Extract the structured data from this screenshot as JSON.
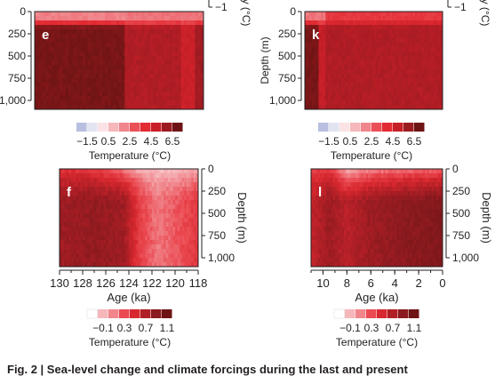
{
  "caption": "Fig. 2 | Sea-level change and climate forcings during the last and present",
  "legend_seq": {
    "colors": [
      "#b9bfe0",
      "#e2e4f2",
      "#fbe3e5",
      "#f6b7bb",
      "#f0868c",
      "#eb5058",
      "#e32b33",
      "#c71f28",
      "#9b1b21",
      "#6e1414"
    ],
    "labels": [
      "−1.5",
      "0.5",
      "2.5",
      "4.5",
      "6.5"
    ],
    "title": "Temperature (°C)"
  },
  "legend_div": {
    "colors": [
      "#ffffff",
      "#f6b7bb",
      "#f0868c",
      "#eb4a52",
      "#d8282f",
      "#b01f26",
      "#8a1a1f",
      "#6e1414"
    ],
    "labels": [
      "−0.1",
      "0.3",
      "0.7",
      "1.1"
    ],
    "title": "Temperature (°C)"
  },
  "chart_data": [
    {
      "type": "heatmap",
      "panel_label": "e",
      "ylabel": "Depth (m)",
      "y_ticks": [
        "0",
        "250",
        "500",
        "750",
        "1,000"
      ],
      "ylim": [
        0,
        1100
      ],
      "colorbar_label": "Temperature (°C)",
      "colorbar_range": [
        -1.5,
        7.5
      ],
      "side_label": "y (°C)",
      "side_tick": "−1",
      "segments": [
        {
          "x_start_frac": 0.0,
          "x_end_frac": 0.53,
          "surface_temp": 1.2,
          "deep_temp": 7.2
        },
        {
          "x_start_frac": 0.53,
          "x_end_frac": 0.87,
          "surface_temp": 1.5,
          "deep_temp": 5.6
        },
        {
          "x_start_frac": 0.87,
          "x_end_frac": 0.95,
          "surface_temp": 1.5,
          "deep_temp": 4.8
        },
        {
          "x_start_frac": 0.95,
          "x_end_frac": 1.0,
          "surface_temp": 1.5,
          "deep_temp": 6.0
        }
      ]
    },
    {
      "type": "heatmap",
      "panel_label": "k",
      "ylabel": "Depth (m)",
      "y_ticks": [
        "0",
        "250",
        "500",
        "750",
        "1,000"
      ],
      "ylim": [
        0,
        1100
      ],
      "colorbar_label": "Temperature (°C)",
      "colorbar_range": [
        -1.5,
        7.5
      ],
      "side_label": "y (°C)",
      "side_tick": "−1",
      "segments": [
        {
          "x_start_frac": 0.0,
          "x_end_frac": 0.1,
          "surface_temp": 1.5,
          "deep_temp": 7.2
        },
        {
          "x_start_frac": 0.1,
          "x_end_frac": 0.15,
          "surface_temp": 1.5,
          "deep_temp": 5.0
        },
        {
          "x_start_frac": 0.15,
          "x_end_frac": 1.0,
          "surface_temp": 3.2,
          "deep_temp": 5.6
        }
      ]
    },
    {
      "type": "heatmap",
      "panel_label": "f",
      "xlabel": "Age (ka)",
      "ylabel": "Depth (m)",
      "x_ticks": [
        "130",
        "128",
        "126",
        "124",
        "122",
        "120",
        "118"
      ],
      "xlim": [
        130,
        118
      ],
      "y_ticks": [
        "0",
        "250",
        "500",
        "750",
        "1,000"
      ],
      "ylim": [
        0,
        1100
      ],
      "colorbar_label": "Temperature (°C)",
      "colorbar_range": [
        -0.1,
        1.3
      ],
      "profile": [
        {
          "age": 130.0,
          "anomaly_deep": 1.0,
          "anomaly_surface": 0.6
        },
        {
          "age": 127.0,
          "anomaly_deep": 1.05,
          "anomaly_surface": 0.55
        },
        {
          "age": 124.5,
          "anomaly_deep": 1.0,
          "anomaly_surface": 0.3
        },
        {
          "age": 123.0,
          "anomaly_deep": 0.55,
          "anomaly_surface": 0.1
        },
        {
          "age": 121.5,
          "anomaly_deep": 0.35,
          "anomaly_surface": 0.05
        },
        {
          "age": 120.0,
          "anomaly_deep": 0.45,
          "anomaly_surface": 0.05
        },
        {
          "age": 118.0,
          "anomaly_deep": 0.6,
          "anomaly_surface": 0.15
        }
      ]
    },
    {
      "type": "heatmap",
      "panel_label": "l",
      "xlabel": "Age (ka)",
      "ylabel": "Depth (m)",
      "x_ticks": [
        "10",
        "8",
        "6",
        "4",
        "2",
        "0"
      ],
      "xlim": [
        11,
        0
      ],
      "y_ticks": [
        "0",
        "250",
        "500",
        "750",
        "1,000"
      ],
      "ylim": [
        0,
        1100
      ],
      "colorbar_label": "Temperature (°C)",
      "colorbar_range": [
        -0.1,
        1.3
      ],
      "profile": [
        {
          "age": 11.0,
          "anomaly_deep": 0.8,
          "anomaly_surface": 0.5
        },
        {
          "age": 9.5,
          "anomaly_deep": 1.0,
          "anomaly_surface": 0.6
        },
        {
          "age": 8.0,
          "anomaly_deep": 0.85,
          "anomaly_surface": 0.1
        },
        {
          "age": 6.0,
          "anomaly_deep": 1.0,
          "anomaly_surface": 0.25
        },
        {
          "age": 3.0,
          "anomaly_deep": 1.1,
          "anomaly_surface": 0.3
        },
        {
          "age": 0.0,
          "anomaly_deep": 1.15,
          "anomaly_surface": 0.35
        }
      ]
    }
  ]
}
